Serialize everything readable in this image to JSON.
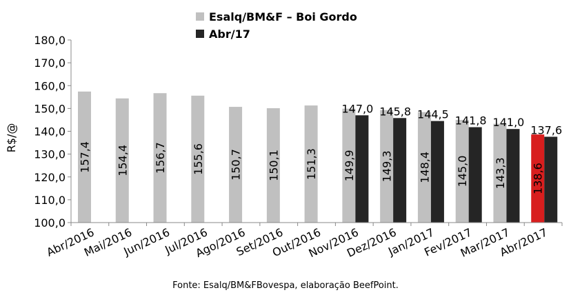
{
  "chart_data": {
    "type": "bar",
    "categories": [
      "Abr/2016",
      "Mai/2016",
      "Jun/2016",
      "Jul/2016",
      "Ago/2016",
      "Set/2016",
      "Out/2016",
      "Nov/2016",
      "Dez/2016",
      "Jan/2017",
      "Fev/2017",
      "Mar/2017",
      "Abr/2017"
    ],
    "series": [
      {
        "name": "Esalq/BM&F – Boi Gordo",
        "color": "#c0c0c0",
        "highlight_color": "#d81e1e",
        "highlight_index": 12,
        "values": [
          157.4,
          154.4,
          156.7,
          155.6,
          150.7,
          150.1,
          151.3,
          149.9,
          149.3,
          148.4,
          145.0,
          143.3,
          138.6
        ],
        "labels": [
          "157,4",
          "154,4",
          "156,7",
          "155,6",
          "150,7",
          "150,1",
          "151,3",
          "149,9",
          "149,3",
          "148,4",
          "145,0",
          "143,3",
          "138,6"
        ]
      },
      {
        "name": "Abr/17",
        "color": "#252525",
        "values": [
          null,
          null,
          null,
          null,
          null,
          null,
          null,
          147.0,
          145.8,
          144.5,
          141.8,
          141.0,
          137.6
        ],
        "labels": [
          "",
          "",
          "",
          "",
          "",
          "",
          "",
          "147,0",
          "145,8",
          "144,5",
          "141,8",
          "141,0",
          "137,6"
        ]
      }
    ],
    "ylabel": "R$/@",
    "ylim": [
      100,
      180
    ],
    "yticks": [
      "100,0",
      "110,0",
      "120,0",
      "130,0",
      "140,0",
      "150,0",
      "160,0",
      "170,0",
      "180,0"
    ],
    "grid": false,
    "legend_position": "top"
  },
  "source_text": "Fonte:  Esalq/BM&FBovespa,  elaboração  BeefPoint."
}
